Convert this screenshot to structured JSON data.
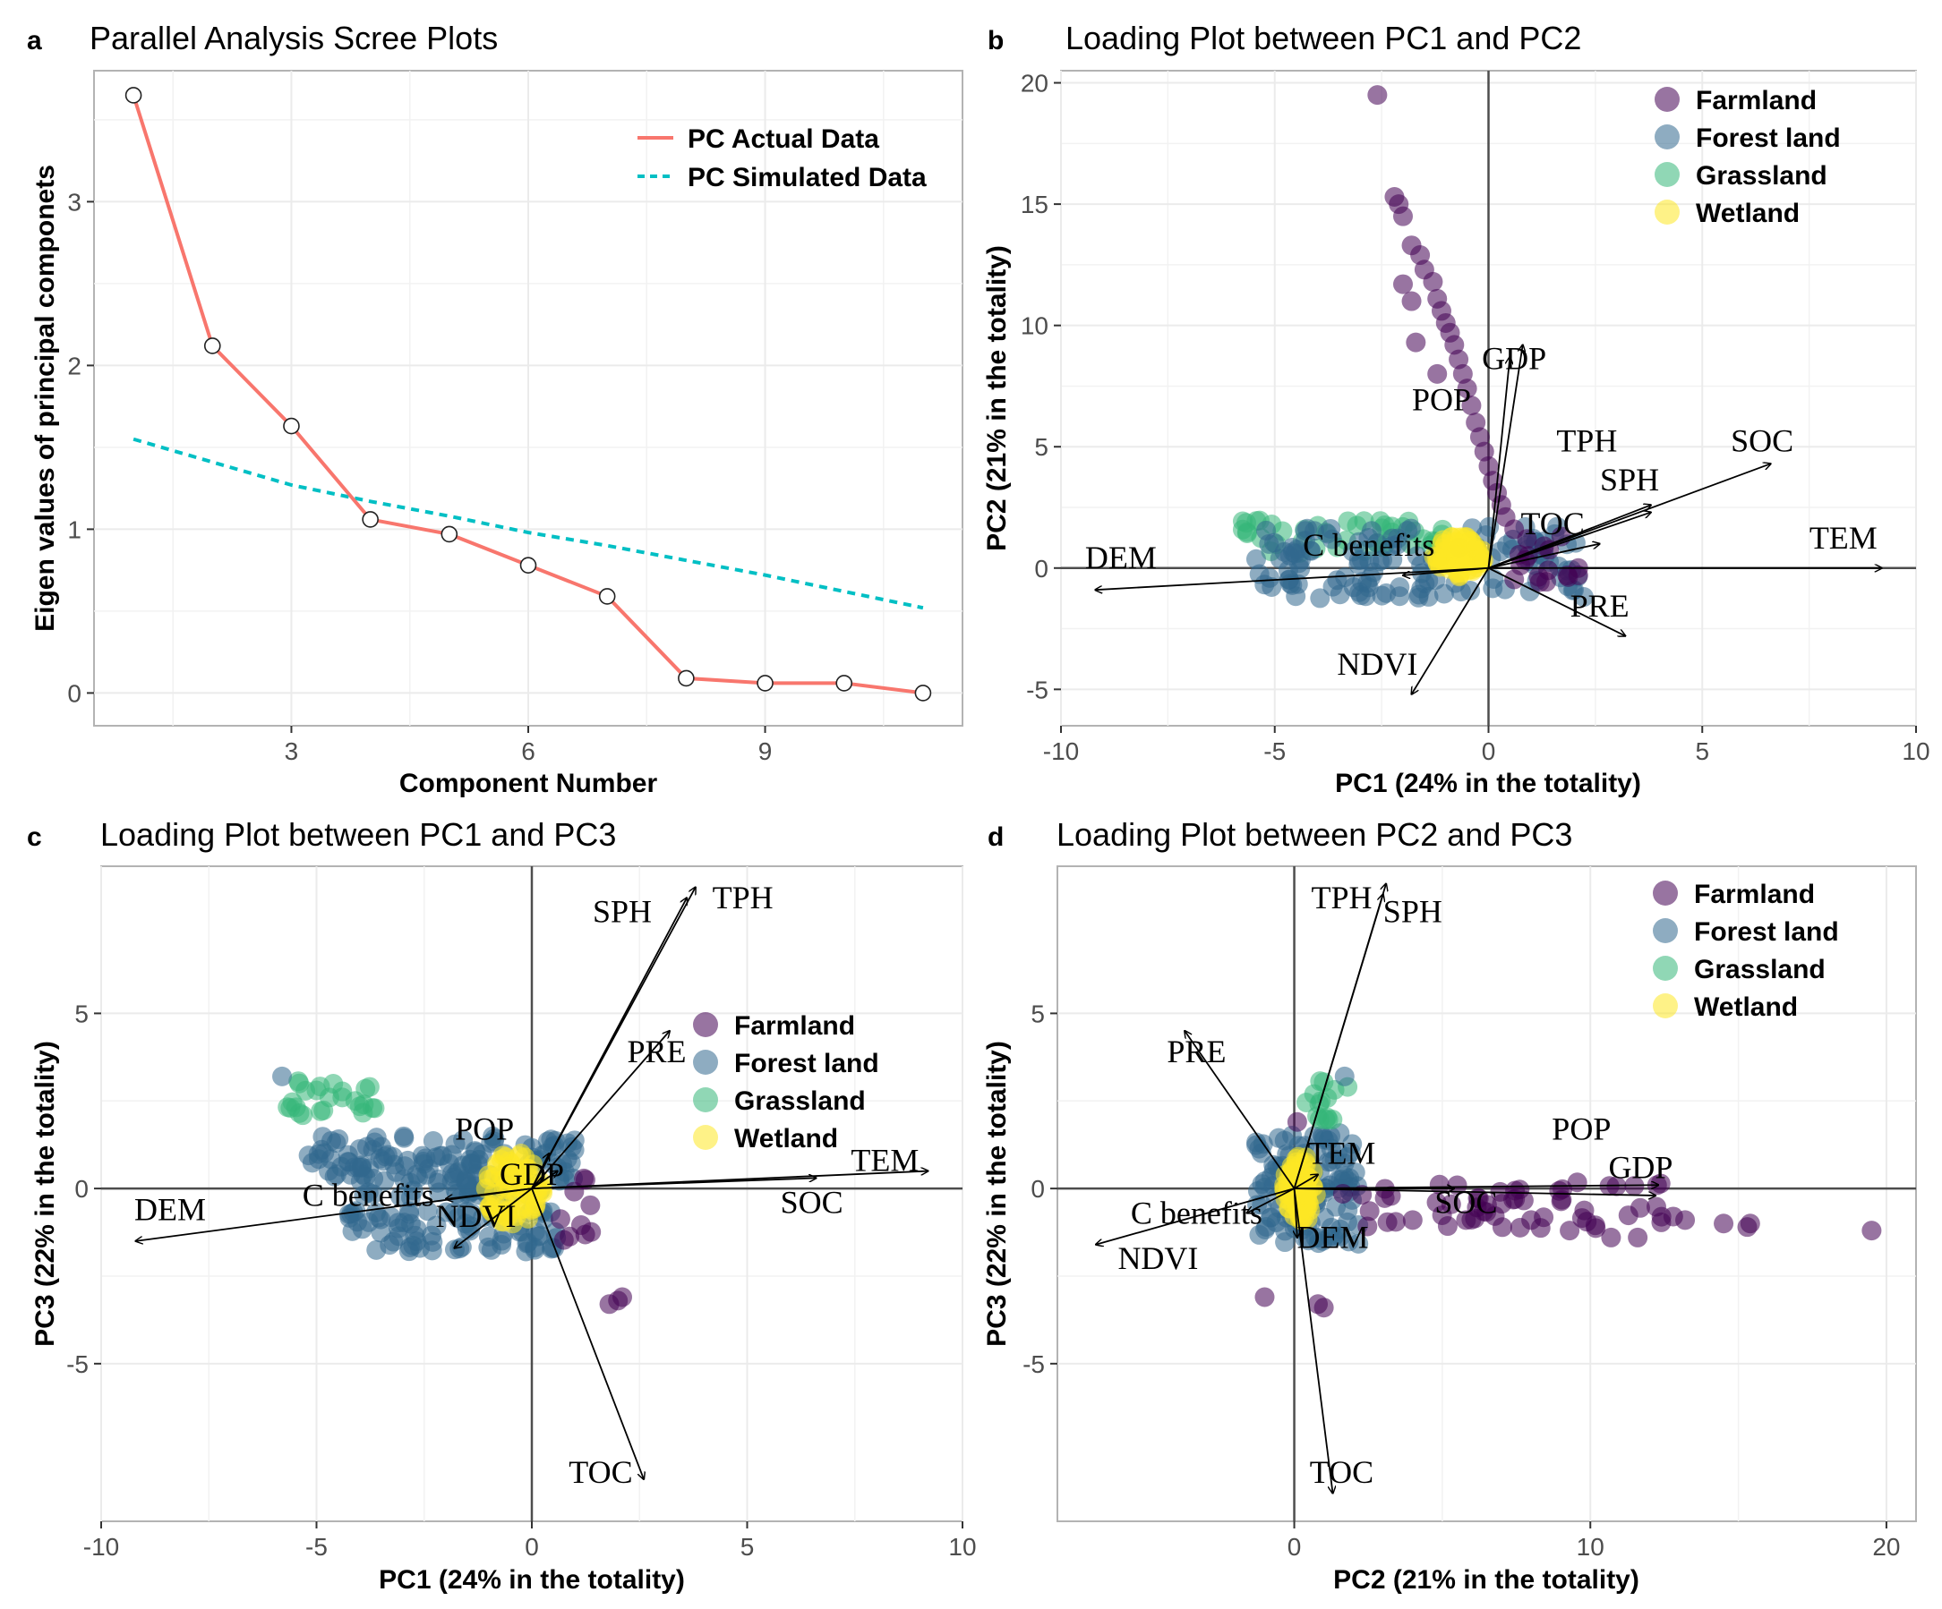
{
  "figure": {
    "panel_a": {
      "letter": "a",
      "title": "Parallel Analysis Scree Plots"
    },
    "panel_b": {
      "letter": "b",
      "title": "Loading Plot between PC1 and PC2"
    },
    "panel_c": {
      "letter": "c",
      "title": "Loading Plot between PC1 and PC3"
    },
    "panel_d": {
      "letter": "d",
      "title": "Loading Plot between PC2 and PC3"
    }
  },
  "colors": {
    "actual": "#f8766d",
    "simulated": "#00bfc4",
    "Farmland": "#440154",
    "Forest land": "#31688e",
    "Grassland": "#35b779",
    "Wetland": "#fde725",
    "grid": "#ebebeb",
    "panel_border": "#b3b3b3"
  },
  "chart_data": [
    {
      "id": "a",
      "type": "line",
      "title": "Parallel Analysis Scree Plots",
      "xlabel": "Component Number",
      "ylabel": "Eigen values of principal componets",
      "xlim": [
        0.5,
        11.5
      ],
      "ylim": [
        -0.2,
        3.8
      ],
      "xticks": [
        3,
        6,
        9
      ],
      "yticks": [
        0,
        1,
        2,
        3
      ],
      "legend": [
        "PC Actual Data",
        "PC Simulated Data"
      ],
      "legend_position": "top-right",
      "series": [
        {
          "name": "PC Actual Data",
          "x": [
            1,
            2,
            3,
            4,
            5,
            6,
            7,
            8,
            9,
            10,
            11
          ],
          "values": [
            3.65,
            2.12,
            1.63,
            1.06,
            0.97,
            0.78,
            0.59,
            0.09,
            0.06,
            0.06,
            0.0
          ]
        },
        {
          "name": "PC Simulated Data",
          "x": [
            1,
            2,
            3,
            4,
            5,
            6,
            7,
            8,
            9,
            10,
            11
          ],
          "values": [
            1.55,
            1.41,
            1.27,
            1.17,
            1.08,
            0.98,
            0.9,
            0.81,
            0.72,
            0.62,
            0.52
          ]
        }
      ]
    },
    {
      "id": "b",
      "type": "scatter",
      "title": "Loading Plot between PC1 and PC2",
      "xlabel": "PC1 (24% in the totality)",
      "ylabel": "PC2 (21% in the totality)",
      "xlim": [
        -10,
        10
      ],
      "ylim": [
        -6.5,
        20.5
      ],
      "xticks": [
        -10,
        -5,
        0,
        5,
        10
      ],
      "yticks": [
        -5,
        0,
        5,
        10,
        15,
        20
      ],
      "legend": [
        "Farmland",
        "Forest land",
        "Grassland",
        "Wetland"
      ],
      "legend_position": "top-right",
      "clusters": [
        {
          "group": "Grassland",
          "x": [
            -6.0,
            -1.0
          ],
          "y": [
            0.6,
            2.0
          ],
          "n": 45
        },
        {
          "group": "Forest land",
          "x": [
            -5.5,
            2.3
          ],
          "y": [
            -1.3,
            1.7
          ],
          "n": 130
        },
        {
          "group": "Farmland",
          "x": [
            0.4,
            2.2
          ],
          "y": [
            -0.6,
            0.8
          ],
          "n": 12
        }
      ],
      "points": [
        {
          "group": "Farmland",
          "x": -2.6,
          "y": 19.5
        },
        {
          "group": "Farmland",
          "x": -2.2,
          "y": 15.3
        },
        {
          "group": "Farmland",
          "x": -2.1,
          "y": 15.0
        },
        {
          "group": "Farmland",
          "x": -2.0,
          "y": 14.5
        },
        {
          "group": "Farmland",
          "x": -1.8,
          "y": 13.3
        },
        {
          "group": "Farmland",
          "x": -1.6,
          "y": 12.9
        },
        {
          "group": "Farmland",
          "x": -1.5,
          "y": 12.3
        },
        {
          "group": "Farmland",
          "x": -1.3,
          "y": 11.8
        },
        {
          "group": "Farmland",
          "x": -1.2,
          "y": 11.1
        },
        {
          "group": "Farmland",
          "x": -1.1,
          "y": 10.6
        },
        {
          "group": "Farmland",
          "x": -2.0,
          "y": 11.7
        },
        {
          "group": "Farmland",
          "x": -1.8,
          "y": 11.0
        },
        {
          "group": "Farmland",
          "x": -1.0,
          "y": 10.1
        },
        {
          "group": "Farmland",
          "x": -0.9,
          "y": 9.7
        },
        {
          "group": "Farmland",
          "x": -0.8,
          "y": 9.2
        },
        {
          "group": "Farmland",
          "x": -1.7,
          "y": 9.3
        },
        {
          "group": "Farmland",
          "x": -1.2,
          "y": 8.0
        },
        {
          "group": "Farmland",
          "x": -0.7,
          "y": 8.6
        },
        {
          "group": "Farmland",
          "x": -0.6,
          "y": 8.0
        },
        {
          "group": "Farmland",
          "x": -0.5,
          "y": 7.4
        },
        {
          "group": "Farmland",
          "x": -0.4,
          "y": 6.7
        },
        {
          "group": "Farmland",
          "x": -0.3,
          "y": 6.0
        },
        {
          "group": "Farmland",
          "x": -0.2,
          "y": 5.4
        },
        {
          "group": "Farmland",
          "x": -0.1,
          "y": 4.8
        },
        {
          "group": "Farmland",
          "x": 0.0,
          "y": 4.2
        },
        {
          "group": "Farmland",
          "x": 0.1,
          "y": 3.6
        },
        {
          "group": "Farmland",
          "x": 0.2,
          "y": 3.1
        },
        {
          "group": "Farmland",
          "x": 0.3,
          "y": 2.6
        },
        {
          "group": "Farmland",
          "x": 0.4,
          "y": 2.1
        },
        {
          "group": "Farmland",
          "x": 0.6,
          "y": 1.6
        },
        {
          "group": "Farmland",
          "x": 0.9,
          "y": 1.2
        },
        {
          "group": "Farmland",
          "x": 1.3,
          "y": 0.9
        },
        {
          "group": "Farmland",
          "x": 1.7,
          "y": 1.3
        },
        {
          "group": "Farmland",
          "x": 2.1,
          "y": 0.0
        },
        {
          "group": "Farmland",
          "x": 2.1,
          "y": -0.3
        }
      ],
      "wetland": {
        "center": [
          -0.7,
          0.5
        ],
        "spread": [
          1.2,
          1.7
        ]
      },
      "arrows": [
        {
          "label": "DEM",
          "x": -9.2,
          "y": -0.9,
          "lx": -8.6,
          "ly": 0.0
        },
        {
          "label": "C benefits",
          "x": -2.0,
          "y": -0.3,
          "lx": -2.8,
          "ly": 0.5
        },
        {
          "label": "GDP",
          "x": 0.8,
          "y": 9.2,
          "lx": 0.6,
          "ly": 8.2
        },
        {
          "label": "POP",
          "x": 0.5,
          "y": 8.7,
          "lx": -1.1,
          "ly": 6.5
        },
        {
          "label": "TPH",
          "x": 3.8,
          "y": 2.6,
          "lx": 2.3,
          "ly": 4.8
        },
        {
          "label": "SPH",
          "x": 3.8,
          "y": 2.3,
          "lx": 3.3,
          "ly": 3.2
        },
        {
          "label": "SOC",
          "x": 6.6,
          "y": 4.3,
          "lx": 6.4,
          "ly": 4.8
        },
        {
          "label": "TOC",
          "x": 2.6,
          "y": 1.0,
          "lx": 1.5,
          "ly": 1.4
        },
        {
          "label": "TEM",
          "x": 9.2,
          "y": 0.0,
          "lx": 8.3,
          "ly": 0.8
        },
        {
          "label": "PRE",
          "x": 3.2,
          "y": -2.8,
          "lx": 2.6,
          "ly": -2.0
        },
        {
          "label": "NDVI",
          "x": -1.8,
          "y": -5.2,
          "lx": -2.6,
          "ly": -4.4
        }
      ]
    },
    {
      "id": "c",
      "type": "scatter",
      "title": "Loading Plot between PC1 and PC3",
      "xlabel": "PC1 (24% in the totality)",
      "ylabel": "PC3 (22% in the totality)",
      "xlim": [
        -10,
        10
      ],
      "ylim": [
        -9.5,
        9.2
      ],
      "xticks": [
        -10,
        -5,
        0,
        5,
        10
      ],
      "yticks": [
        -5,
        0,
        5
      ],
      "legend": [
        "Farmland",
        "Forest land",
        "Grassland",
        "Wetland"
      ],
      "legend_position": "right",
      "clusters": [
        {
          "group": "Forest land",
          "x": [
            -5.2,
            1.0
          ],
          "y": [
            0.2,
            1.5
          ],
          "n": 110
        },
        {
          "group": "Forest land",
          "x": [
            -4.3,
            0.6
          ],
          "y": [
            -1.8,
            -0.6
          ],
          "n": 80
        },
        {
          "group": "Forest land",
          "x": [
            -4.0,
            0.2
          ],
          "y": [
            -0.3,
            0.6
          ],
          "n": 50
        },
        {
          "group": "Grassland",
          "x": [
            -5.7,
            -3.6
          ],
          "y": [
            2.0,
            3.1
          ],
          "n": 18
        },
        {
          "group": "Farmland",
          "x": [
            0.4,
            1.4
          ],
          "y": [
            -1.6,
            0.6
          ],
          "n": 10
        }
      ],
      "points": [
        {
          "group": "Forest land",
          "x": -5.8,
          "y": 3.2
        },
        {
          "group": "Grassland",
          "x": -5.4,
          "y": 3.0
        },
        {
          "group": "Grassland",
          "x": -5.0,
          "y": 2.8
        },
        {
          "group": "Grassland",
          "x": -4.7,
          "y": 2.6
        },
        {
          "group": "Grassland",
          "x": -4.4,
          "y": 2.6
        },
        {
          "group": "Grassland",
          "x": -4.1,
          "y": 2.5
        },
        {
          "group": "Grassland",
          "x": -3.9,
          "y": 2.4
        },
        {
          "group": "Grassland",
          "x": -3.7,
          "y": 2.3
        },
        {
          "group": "Farmland",
          "x": 1.8,
          "y": -3.3
        },
        {
          "group": "Farmland",
          "x": 2.0,
          "y": -3.2
        },
        {
          "group": "Farmland",
          "x": 2.1,
          "y": -3.1
        }
      ],
      "wetland": {
        "center": [
          -0.4,
          0.0
        ],
        "spread": [
          1.4,
          2.1
        ]
      },
      "arrows": [
        {
          "label": "DEM",
          "x": -9.2,
          "y": -1.5,
          "lx": -8.4,
          "ly": -0.9
        },
        {
          "label": "C benefits",
          "x": -2.0,
          "y": -0.3,
          "lx": -3.8,
          "ly": -0.5
        },
        {
          "label": "POP",
          "x": 0.4,
          "y": 1.0,
          "lx": -1.1,
          "ly": 1.4
        },
        {
          "label": "GDP",
          "x": 0.6,
          "y": 0.5,
          "lx": 0.0,
          "ly": 0.1
        },
        {
          "label": "NDVI",
          "x": -1.8,
          "y": -1.7,
          "lx": -1.3,
          "ly": -1.1
        },
        {
          "label": "SPH",
          "x": 3.6,
          "y": 8.3,
          "lx": 2.1,
          "ly": 7.6
        },
        {
          "label": "TPH",
          "x": 3.8,
          "y": 8.6,
          "lx": 4.9,
          "ly": 8.0
        },
        {
          "label": "PRE",
          "x": 3.2,
          "y": 4.5,
          "lx": 2.9,
          "ly": 3.6
        },
        {
          "label": "TEM",
          "x": 9.2,
          "y": 0.5,
          "lx": 8.2,
          "ly": 0.5
        },
        {
          "label": "SOC",
          "x": 6.6,
          "y": 0.3,
          "lx": 6.5,
          "ly": -0.7
        },
        {
          "label": "TOC",
          "x": 2.6,
          "y": -8.3,
          "lx": 1.6,
          "ly": -8.4
        }
      ]
    },
    {
      "id": "d",
      "type": "scatter",
      "title": "Loading Plot between PC2 and PC3",
      "xlabel": "PC2 (21% in the totality)",
      "ylabel": "PC3 (22% in the totality)",
      "xlim": [
        -8,
        21
      ],
      "ylim": [
        -9.5,
        9.2
      ],
      "xticks": [
        0,
        10,
        20
      ],
      "yticks": [
        -5,
        0,
        5
      ],
      "legend": [
        "Farmland",
        "Forest land",
        "Grassland",
        "Wetland"
      ],
      "legend_position": "top-right",
      "clusters": [
        {
          "group": "Forest land",
          "x": [
            -1.3,
            2.3
          ],
          "y": [
            -1.6,
            1.6
          ],
          "n": 120
        },
        {
          "group": "Grassland",
          "x": [
            0.4,
            1.6
          ],
          "y": [
            1.8,
            3.1
          ],
          "n": 14
        },
        {
          "group": "Farmland",
          "x": [
            1.5,
            12.5
          ],
          "y": [
            -1.2,
            0.2
          ],
          "n": 55
        }
      ],
      "points": [
        {
          "group": "Farmland",
          "x": 19.5,
          "y": -1.2
        },
        {
          "group": "Farmland",
          "x": 15.4,
          "y": -1.0
        },
        {
          "group": "Farmland",
          "x": 15.3,
          "y": -1.1
        },
        {
          "group": "Farmland",
          "x": 14.5,
          "y": -1.0
        },
        {
          "group": "Farmland",
          "x": 13.2,
          "y": -0.9
        },
        {
          "group": "Farmland",
          "x": 12.8,
          "y": -0.8
        },
        {
          "group": "Farmland",
          "x": 11.6,
          "y": -1.4
        },
        {
          "group": "Farmland",
          "x": 10.7,
          "y": -1.4
        },
        {
          "group": "Farmland",
          "x": 9.3,
          "y": -1.2
        },
        {
          "group": "Farmland",
          "x": 8.0,
          "y": -0.9
        },
        {
          "group": "Farmland",
          "x": 5.8,
          "y": -0.9
        },
        {
          "group": "Farmland",
          "x": 4.0,
          "y": -0.9
        },
        {
          "group": "Farmland",
          "x": -1.0,
          "y": -3.1
        },
        {
          "group": "Farmland",
          "x": 0.8,
          "y": -3.3
        },
        {
          "group": "Farmland",
          "x": 1.0,
          "y": -3.4
        },
        {
          "group": "Farmland",
          "x": 0.1,
          "y": 1.9
        },
        {
          "group": "Grassland",
          "x": 1.8,
          "y": 2.9
        },
        {
          "group": "Forest land",
          "x": 1.7,
          "y": 3.2
        }
      ],
      "wetland": {
        "center": [
          0.2,
          0.0
        ],
        "spread": [
          1.1,
          2.0
        ]
      },
      "arrows": [
        {
          "label": "TPH",
          "x": 3.1,
          "y": 8.7,
          "lx": 1.6,
          "ly": 8.0
        },
        {
          "label": "SPH",
          "x": 3.0,
          "y": 8.4,
          "lx": 4.0,
          "ly": 7.6
        },
        {
          "label": "PRE",
          "x": -3.7,
          "y": 4.5,
          "lx": -3.3,
          "ly": 3.6
        },
        {
          "label": "POP",
          "x": 12.2,
          "y": -0.2,
          "lx": 9.7,
          "ly": 1.4
        },
        {
          "label": "GDP",
          "x": 12.3,
          "y": 0.1,
          "lx": 11.7,
          "ly": 0.3
        },
        {
          "label": "TEM",
          "x": 0.8,
          "y": 0.4,
          "lx": 1.6,
          "ly": 0.7
        },
        {
          "label": "SOC",
          "x": 5.4,
          "y": 0.0,
          "lx": 5.8,
          "ly": -0.7
        },
        {
          "label": "DEM",
          "x": 0.1,
          "y": -1.4,
          "lx": 1.3,
          "ly": -1.7
        },
        {
          "label": "C benefits",
          "x": -1.6,
          "y": -0.7,
          "lx": -3.3,
          "ly": -1.0
        },
        {
          "label": "NDVI",
          "x": -6.7,
          "y": -1.6,
          "lx": -4.6,
          "ly": -2.3
        },
        {
          "label": "TOC",
          "x": 1.3,
          "y": -8.7,
          "lx": 1.6,
          "ly": -8.4
        }
      ]
    }
  ]
}
